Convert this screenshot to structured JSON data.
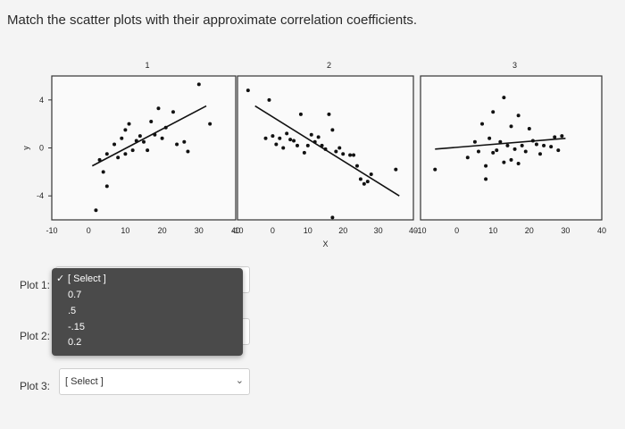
{
  "question": "Match the scatter plots with their approximate correlation coefficients.",
  "chart_data": [
    {
      "type": "scatter",
      "title": "1",
      "xlim": [
        -10,
        40
      ],
      "ylim": [
        -6,
        6
      ],
      "xticks": [
        "-10",
        "0",
        "10",
        "20",
        "30",
        "40"
      ],
      "yticks": [
        "4",
        "0",
        "-4"
      ],
      "ylabel": "y",
      "points": [
        [
          2,
          -5.2
        ],
        [
          3,
          -1
        ],
        [
          4,
          -2
        ],
        [
          5,
          -3.2
        ],
        [
          5,
          -0.5
        ],
        [
          7,
          0.3
        ],
        [
          8,
          -0.8
        ],
        [
          9,
          0.8
        ],
        [
          10,
          -0.5
        ],
        [
          10,
          1.5
        ],
        [
          11,
          2
        ],
        [
          12,
          -0.2
        ],
        [
          13,
          0.6
        ],
        [
          14,
          1
        ],
        [
          15,
          0.5
        ],
        [
          16,
          -0.2
        ],
        [
          17,
          2.2
        ],
        [
          18,
          1.1
        ],
        [
          19,
          3.3
        ],
        [
          20,
          0.8
        ],
        [
          21,
          1.7
        ],
        [
          23,
          3
        ],
        [
          24,
          0.3
        ],
        [
          26,
          0.5
        ],
        [
          27,
          -0.3
        ],
        [
          30,
          5.3
        ],
        [
          33,
          2
        ]
      ],
      "line": [
        [
          1,
          -1.5
        ],
        [
          32,
          3.5
        ]
      ]
    },
    {
      "type": "scatter",
      "title": "2",
      "xlim": [
        -10,
        40
      ],
      "ylim": [
        -6,
        6
      ],
      "xticks": [
        "-10",
        "0",
        "10",
        "20",
        "30",
        "40"
      ],
      "xlabel": "X",
      "points": [
        [
          -7,
          4.8
        ],
        [
          -2,
          0.8
        ],
        [
          -1,
          4
        ],
        [
          0,
          1
        ],
        [
          1,
          0.3
        ],
        [
          2,
          0.8
        ],
        [
          3,
          0
        ],
        [
          4,
          1.2
        ],
        [
          5,
          0.7
        ],
        [
          6,
          0.6
        ],
        [
          7,
          0.2
        ],
        [
          8,
          2.8
        ],
        [
          9,
          -0.4
        ],
        [
          10,
          0.2
        ],
        [
          11,
          1.1
        ],
        [
          12,
          0.5
        ],
        [
          13,
          0.9
        ],
        [
          14,
          0.2
        ],
        [
          15,
          -0.1
        ],
        [
          16,
          2.8
        ],
        [
          17,
          1.5
        ],
        [
          18,
          -0.3
        ],
        [
          19,
          0
        ],
        [
          20,
          -0.5
        ],
        [
          22,
          -0.6
        ],
        [
          23,
          -0.6
        ],
        [
          24,
          -1.5
        ],
        [
          25,
          -2.6
        ],
        [
          26,
          -3
        ],
        [
          27,
          -2.8
        ],
        [
          28,
          -2.2
        ],
        [
          35,
          -1.8
        ],
        [
          17,
          -5.8
        ]
      ],
      "line": [
        [
          -5,
          3.5
        ],
        [
          36,
          -4
        ]
      ]
    },
    {
      "type": "scatter",
      "title": "3",
      "xlim": [
        -10,
        40
      ],
      "ylim": [
        -6,
        6
      ],
      "xticks": [
        "-10",
        "0",
        "10",
        "20",
        "30",
        "40"
      ],
      "points": [
        [
          -6,
          -1.8
        ],
        [
          3,
          -0.8
        ],
        [
          5,
          0.5
        ],
        [
          6,
          -0.3
        ],
        [
          7,
          2
        ],
        [
          8,
          -1.5
        ],
        [
          9,
          0.8
        ],
        [
          10,
          -0.4
        ],
        [
          10,
          3
        ],
        [
          11,
          -0.2
        ],
        [
          12,
          0.5
        ],
        [
          13,
          4.2
        ],
        [
          14,
          0.2
        ],
        [
          15,
          -1
        ],
        [
          15,
          1.8
        ],
        [
          16,
          -0.1
        ],
        [
          17,
          2.7
        ],
        [
          18,
          0.2
        ],
        [
          19,
          -0.3
        ],
        [
          20,
          1.6
        ],
        [
          21,
          0.6
        ],
        [
          22,
          0.3
        ],
        [
          23,
          -0.5
        ],
        [
          24,
          0.2
        ],
        [
          26,
          0.1
        ],
        [
          27,
          0.9
        ],
        [
          28,
          -0.2
        ],
        [
          29,
          1
        ],
        [
          8,
          -2.6
        ],
        [
          13,
          -1.2
        ],
        [
          17,
          -1.3
        ]
      ],
      "line": [
        [
          -6,
          -0.1
        ],
        [
          30,
          0.8
        ]
      ]
    }
  ],
  "rows": {
    "plot1_label": "Plot 1:",
    "plot2_label": "Plot 2:",
    "plot3_label": "Plot 3:",
    "plot3_value": "[ Select ]"
  },
  "dropdown": {
    "options": [
      "[ Select ]",
      "0.7",
      ".5",
      "-.15",
      "0.2"
    ],
    "selected_index": 0,
    "check_icon": "checkmark-icon"
  },
  "colors": {
    "dropdown_bg": "#4a4a4a",
    "page_bg": "#f4f4f4"
  }
}
